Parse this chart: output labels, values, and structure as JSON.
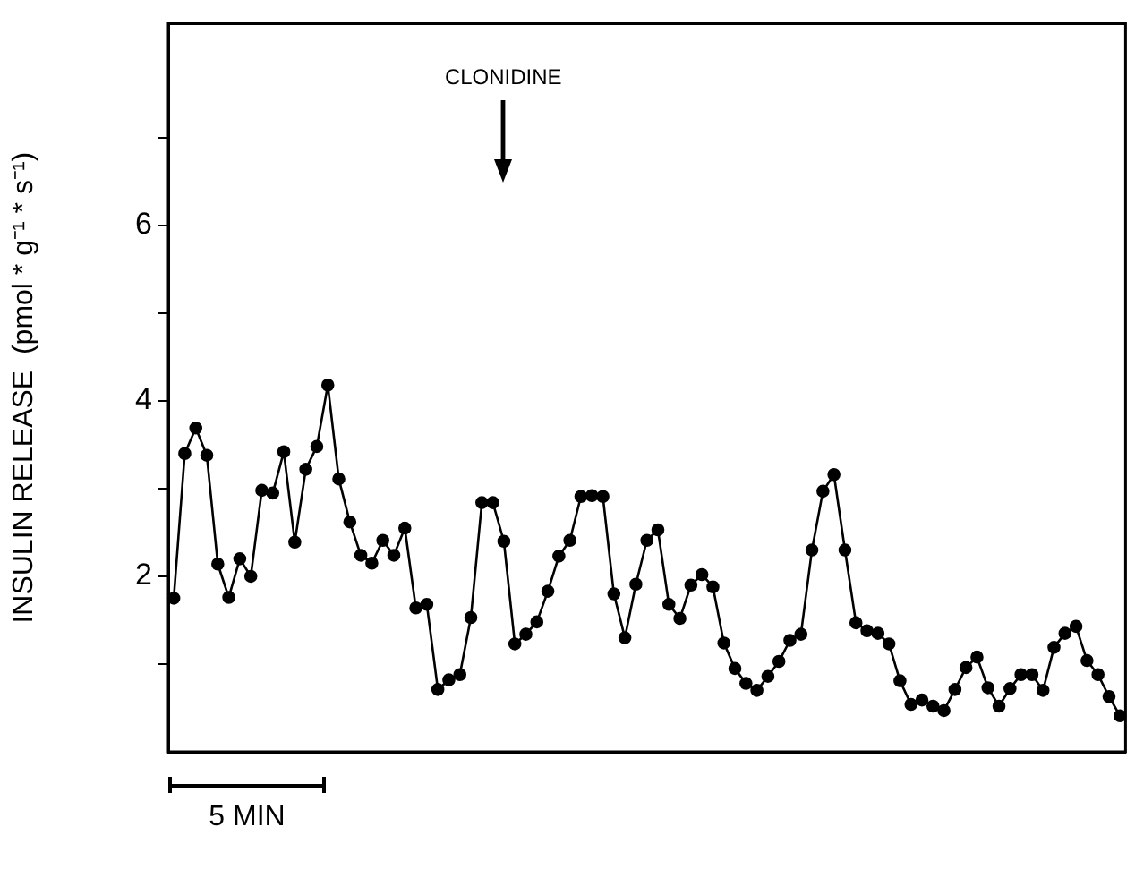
{
  "chart_data": {
    "type": "line",
    "ylabel": "INSULIN RELEASE  (pmol * g⁻¹ * s⁻¹)",
    "categories": [
      null,
      null,
      null,
      null,
      null,
      null,
      null,
      null,
      null,
      null,
      null,
      null,
      null,
      null,
      null,
      null,
      null,
      null,
      null,
      null,
      null,
      null,
      null,
      null,
      null,
      null,
      null,
      null,
      null,
      null,
      null,
      null,
      null,
      null,
      null,
      null,
      null,
      null,
      null,
      null,
      null,
      null,
      null,
      null,
      null,
      null,
      null,
      null,
      null,
      null,
      null,
      null,
      null,
      null,
      null,
      null,
      null,
      null,
      null,
      null,
      null,
      null,
      null,
      null,
      null,
      null,
      null,
      null,
      null,
      null,
      null,
      null,
      null,
      null,
      null,
      null,
      null,
      null,
      null,
      null,
      null,
      null,
      null,
      null,
      null,
      null,
      null
    ],
    "values": [
      1.75,
      3.4,
      3.69,
      3.38,
      2.14,
      1.76,
      2.2,
      2.0,
      2.98,
      2.95,
      3.42,
      2.39,
      3.22,
      3.48,
      4.18,
      3.11,
      2.62,
      2.24,
      2.15,
      2.41,
      2.24,
      2.55,
      1.64,
      1.68,
      0.71,
      0.82,
      0.88,
      1.53,
      2.84,
      2.84,
      2.4,
      1.23,
      1.34,
      1.48,
      1.83,
      2.23,
      2.41,
      2.91,
      2.92,
      2.91,
      1.8,
      1.3,
      1.91,
      2.41,
      2.53,
      1.68,
      1.52,
      1.9,
      2.02,
      1.88,
      1.24,
      0.95,
      0.78,
      0.7,
      0.86,
      1.03,
      1.27,
      1.34,
      2.3,
      2.97,
      3.16,
      2.3,
      1.47,
      1.38,
      1.35,
      1.23,
      0.81,
      0.54,
      0.59,
      0.52,
      0.47,
      0.71,
      0.96,
      1.08,
      0.73,
      0.52,
      0.72,
      0.88,
      0.88,
      0.7,
      1.19,
      1.35,
      1.43,
      1.04,
      0.88,
      0.63,
      0.41
    ],
    "color": "#000000",
    "marker": "circle",
    "line_style": "solid",
    "ylim": [
      0,
      8.3
    ],
    "yticks": [
      {
        "value": 1,
        "label": null
      },
      2,
      {
        "value": 3,
        "label": null
      },
      4,
      {
        "value": 5,
        "label": null
      },
      6,
      {
        "value": 7,
        "label": null
      }
    ],
    "tick_labels": "y",
    "grid": false,
    "legend": false,
    "annotations": [
      "CLONIDINE",
      "5 MIN"
    ]
  }
}
